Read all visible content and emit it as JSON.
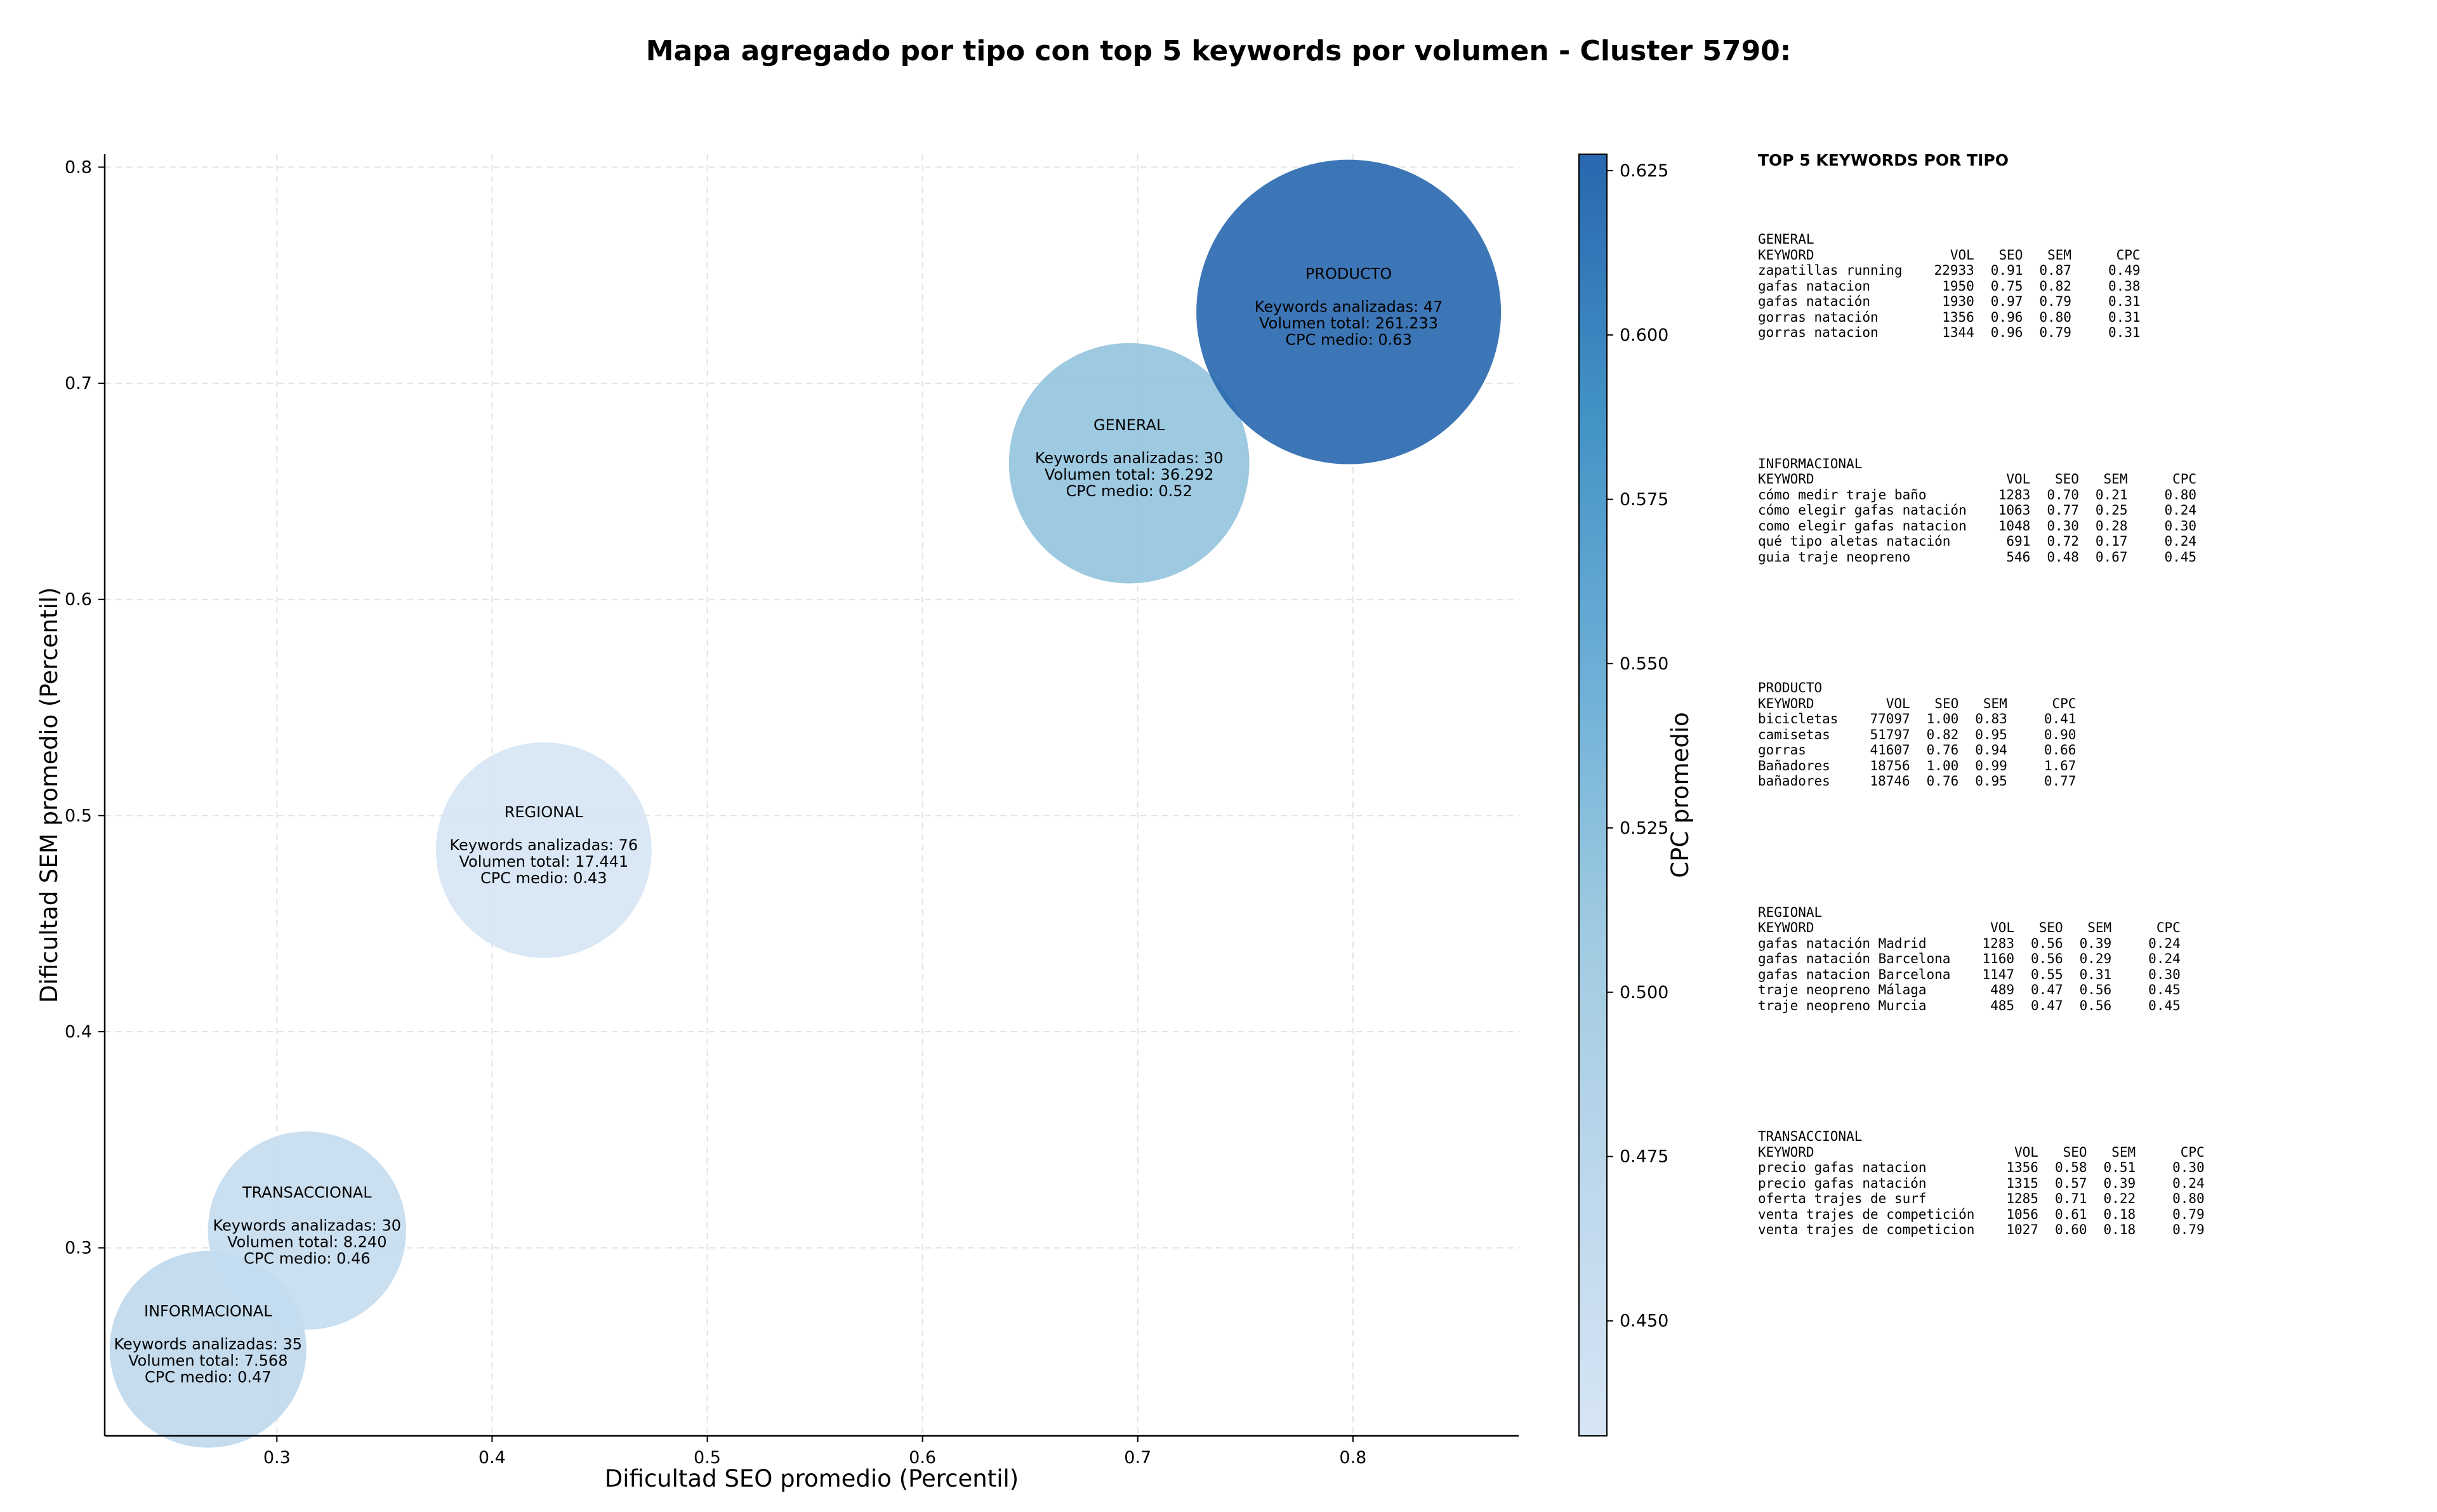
{
  "title": "Mapa agregado por tipo con top 5 keywords por volumen - Cluster 5790:",
  "chart_data": {
    "type": "scatter",
    "title": "Mapa agregado por tipo con top 5 keywords por volumen - Cluster 5790:",
    "xlabel": "Dificultad SEO promedio (Percentil)",
    "ylabel": "Dificultad SEM promedio (Percentil)",
    "colorbar_label": "CPC promedio",
    "xlim": [
      0.22,
      0.877
    ],
    "ylim": [
      0.213,
      0.806
    ],
    "clim": [
      0.4325,
      0.6275
    ],
    "xticks": [
      "0.3",
      "0.4",
      "0.5",
      "0.6",
      "0.7",
      "0.8"
    ],
    "xtick_values": [
      0.3,
      0.4,
      0.5,
      0.6,
      0.7,
      0.8
    ],
    "yticks": [
      "0.3",
      "0.4",
      "0.5",
      "0.6",
      "0.7",
      "0.8"
    ],
    "ytick_values": [
      0.3,
      0.4,
      0.5,
      0.6,
      0.7,
      0.8
    ],
    "cticks": [
      "0.450",
      "0.475",
      "0.500",
      "0.525",
      "0.550",
      "0.575",
      "0.600",
      "0.625"
    ],
    "ctick_values": [
      0.45,
      0.475,
      0.5,
      0.525,
      0.55,
      0.575,
      0.6,
      0.625
    ],
    "grid": true,
    "points": [
      {
        "name": "INFORMACIONAL",
        "x": 0.268,
        "y": 0.253,
        "keywords": 35,
        "volume": 7568,
        "cpc": 0.47,
        "lines": [
          "Keywords analizadas: 35",
          "Volumen total: 7.568",
          "CPC medio: 0.47"
        ]
      },
      {
        "name": "TRANSACCIONAL",
        "x": 0.314,
        "y": 0.308,
        "keywords": 30,
        "volume": 8240,
        "cpc": 0.46,
        "lines": [
          "Keywords analizadas: 30",
          "Volumen total: 8.240",
          "CPC medio: 0.46"
        ]
      },
      {
        "name": "REGIONAL",
        "x": 0.424,
        "y": 0.484,
        "keywords": 76,
        "volume": 17441,
        "cpc": 0.43,
        "lines": [
          "Keywords analizadas: 76",
          "Volumen total: 17.441",
          "CPC medio: 0.43"
        ]
      },
      {
        "name": "GENERAL",
        "x": 0.696,
        "y": 0.663,
        "keywords": 30,
        "volume": 36292,
        "cpc": 0.52,
        "lines": [
          "Keywords analizadas: 30",
          "Volumen total: 36.292",
          "CPC medio: 0.52"
        ]
      },
      {
        "name": "PRODUCTO",
        "x": 0.798,
        "y": 0.733,
        "keywords": 47,
        "volume": 261233,
        "cpc": 0.63,
        "lines": [
          "Keywords analizadas: 47",
          "Volumen total: 261.233",
          "CPC medio: 0.63"
        ]
      }
    ]
  },
  "panel": {
    "heading": "TOP 5 KEYWORDS POR TIPO",
    "columns": [
      "KEYWORD",
      "VOL",
      "SEO",
      "SEM",
      "CPC"
    ],
    "groups": [
      {
        "type": "GENERAL",
        "rows": [
          [
            "zapatillas running",
            "22933",
            "0.91",
            "0.87",
            "0.49"
          ],
          [
            "gafas natacion",
            "1950",
            "0.75",
            "0.82",
            "0.38"
          ],
          [
            "gafas natación",
            "1930",
            "0.97",
            "0.79",
            "0.31"
          ],
          [
            "gorras natación",
            "1356",
            "0.96",
            "0.80",
            "0.31"
          ],
          [
            "gorras natacion",
            "1344",
            "0.96",
            "0.79",
            "0.31"
          ]
        ]
      },
      {
        "type": "INFORMACIONAL",
        "rows": [
          [
            "cómo medir traje baño",
            "1283",
            "0.70",
            "0.21",
            "0.80"
          ],
          [
            "cómo elegir gafas natación",
            "1063",
            "0.77",
            "0.25",
            "0.24"
          ],
          [
            "como elegir gafas natacion",
            "1048",
            "0.30",
            "0.28",
            "0.30"
          ],
          [
            "qué tipo aletas natación",
            "691",
            "0.72",
            "0.17",
            "0.24"
          ],
          [
            "guia traje neopreno",
            "546",
            "0.48",
            "0.67",
            "0.45"
          ]
        ]
      },
      {
        "type": "PRODUCTO",
        "rows": [
          [
            "bicicletas",
            "77097",
            "1.00",
            "0.83",
            "0.41"
          ],
          [
            "camisetas",
            "51797",
            "0.82",
            "0.95",
            "0.90"
          ],
          [
            "gorras",
            "41607",
            "0.76",
            "0.94",
            "0.66"
          ],
          [
            "Bañadores",
            "18756",
            "1.00",
            "0.99",
            "1.67"
          ],
          [
            "bañadores",
            "18746",
            "0.76",
            "0.95",
            "0.77"
          ]
        ]
      },
      {
        "type": "REGIONAL",
        "rows": [
          [
            "gafas natación Madrid",
            "1283",
            "0.56",
            "0.39",
            "0.24"
          ],
          [
            "gafas natación Barcelona",
            "1160",
            "0.56",
            "0.29",
            "0.24"
          ],
          [
            "gafas natacion Barcelona",
            "1147",
            "0.55",
            "0.31",
            "0.30"
          ],
          [
            "traje neopreno Málaga",
            "489",
            "0.47",
            "0.56",
            "0.45"
          ],
          [
            "traje neopreno Murcia",
            "485",
            "0.47",
            "0.56",
            "0.45"
          ]
        ]
      },
      {
        "type": "TRANSACCIONAL",
        "rows": [
          [
            "precio gafas natacion",
            "1356",
            "0.58",
            "0.51",
            "0.30"
          ],
          [
            "precio gafas natación",
            "1315",
            "0.57",
            "0.39",
            "0.24"
          ],
          [
            "oferta trajes de surf",
            "1285",
            "0.71",
            "0.22",
            "0.80"
          ],
          [
            "venta trajes de competición",
            "1056",
            "0.61",
            "0.18",
            "0.79"
          ],
          [
            "venta trajes de competicion",
            "1027",
            "0.60",
            "0.18",
            "0.79"
          ]
        ]
      }
    ]
  }
}
